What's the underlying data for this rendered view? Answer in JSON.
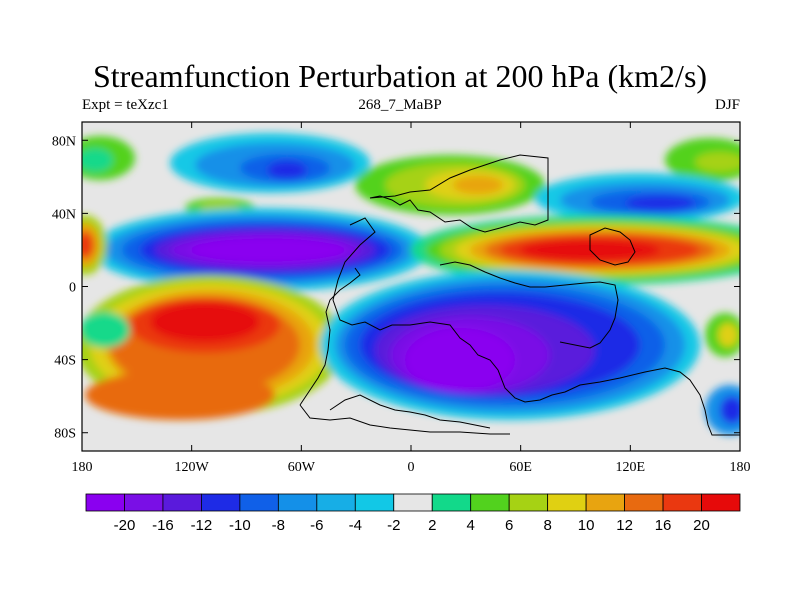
{
  "title": "Streamfunction Perturbation at 200 hPa (km2/s)",
  "left_subtitle": "Expt = teXzc1",
  "center_subtitle": "268_7_MaBP",
  "right_subtitle": "DJF",
  "map": {
    "x_ticks": [
      "180",
      "120W",
      "60W",
      "0",
      "60E",
      "120E",
      "180"
    ],
    "y_ticks": [
      "80N",
      "40N",
      "0",
      "40S",
      "80S"
    ],
    "x_tick_lons": [
      -180,
      -120,
      -60,
      0,
      60,
      120,
      180
    ],
    "y_tick_lats": [
      80,
      40,
      0,
      -40,
      -80
    ],
    "lon_range": [
      -180,
      180
    ],
    "lat_range": [
      -90,
      90
    ]
  },
  "colorbar": {
    "levels": [
      "-20",
      "-16",
      "-12",
      "-10",
      "-8",
      "-6",
      "-4",
      "-2",
      "2",
      "4",
      "6",
      "8",
      "10",
      "12",
      "16",
      "20"
    ],
    "colors": [
      "#8a00f0",
      "#7a0fe6",
      "#5a1adc",
      "#1e2be6",
      "#1060e8",
      "#1490e8",
      "#17aee6",
      "#12c8e6",
      "#e6e6e6",
      "#12d98a",
      "#52d21e",
      "#a6d214",
      "#e0d012",
      "#e8a410",
      "#e86a10",
      "#ea3810",
      "#e60a0a"
    ]
  }
}
